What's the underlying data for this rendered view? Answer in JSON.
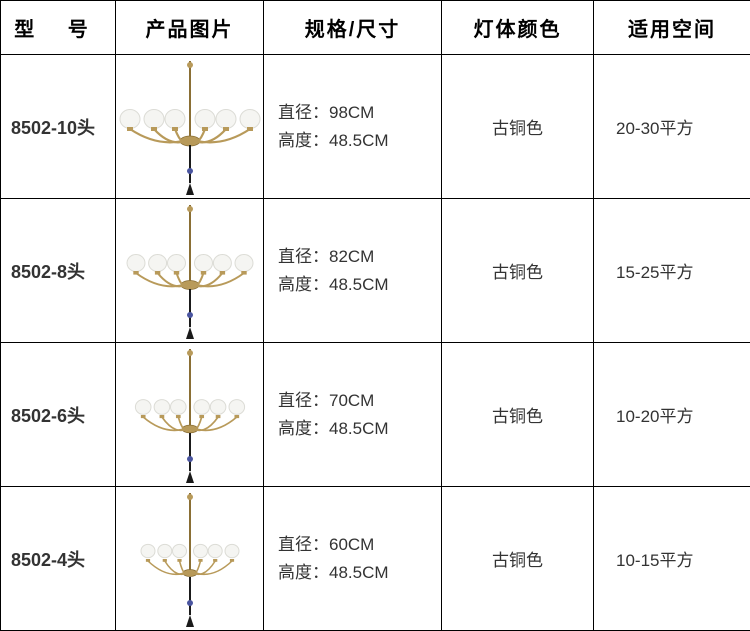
{
  "columns": {
    "model": "型  号",
    "image": "产品图片",
    "spec": "规格/尺寸",
    "color": "灯体颜色",
    "room": "适用空间"
  },
  "spec_labels": {
    "diameter": "直径：",
    "height": "高度："
  },
  "rows": [
    {
      "model": "8502-10头",
      "diameter": "98CM",
      "height": "48.5CM",
      "color": "古铜色",
      "room": "20-30平方",
      "icon_scale": 1.0
    },
    {
      "model": "8502-8头",
      "diameter": "82CM",
      "height": "48.5CM",
      "color": "古铜色",
      "room": "15-25平方",
      "icon_scale": 0.9
    },
    {
      "model": "8502-6头",
      "diameter": "70CM",
      "height": "48.5CM",
      "color": "古铜色",
      "room": "10-20平方",
      "icon_scale": 0.78
    },
    {
      "model": "8502-4头",
      "diameter": "60CM",
      "height": "48.5CM",
      "color": "古铜色",
      "room": "10-15平方",
      "icon_scale": 0.7
    }
  ],
  "style": {
    "border_color": "#000000",
    "header_fontsize": 20,
    "cell_fontsize": 17,
    "brass_color": "#b89a5a",
    "brass_dark": "#8a6f35",
    "globe_color": "#f5f5f2",
    "globe_stroke": "#dcdcd6",
    "pendant_color": "#1a1a1a",
    "bead_color": "#4a55a0"
  }
}
